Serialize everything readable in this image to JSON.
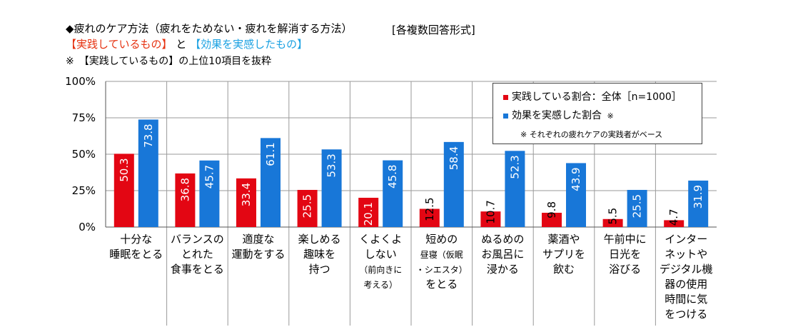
{
  "header": {
    "title": "◆疲れのケア方法（疲れをためない・疲れを解消する方法）",
    "format": "[各複数回答形式]",
    "sub_red": "【実践しているもの】",
    "sub_and": "と",
    "sub_blue": "【効果を実感したもの】",
    "note": "※　【実践しているもの】の上位10項目を抜粋"
  },
  "colors": {
    "practice": "#e30613",
    "effect": "#1877d8"
  },
  "chart_data": {
    "type": "bar",
    "categories": [
      [
        "十分な",
        "睡眠をとる"
      ],
      [
        "バランスの",
        "とれた",
        "食事をとる"
      ],
      [
        "適度な",
        "運動をする"
      ],
      [
        "楽しめる",
        "趣味を",
        "持つ"
      ],
      [
        "くよくよ",
        "しない",
        "（前向きに",
        "考える）"
      ],
      [
        "短めの",
        "昼寝（仮眠",
        "・シエスタ）",
        "をとる"
      ],
      [
        "ぬるめの",
        "お風呂に",
        "浸かる"
      ],
      [
        "薬酒や",
        "サプリを",
        "飲む"
      ],
      [
        "午前中に",
        "日光を",
        "浴びる"
      ],
      [
        "インター",
        "ネットや",
        "デジタル機",
        "器の使用",
        "時間に気",
        "をつける"
      ]
    ],
    "series": [
      {
        "name": "実践している割合：全体［n=1000］",
        "values": [
          50.3,
          36.8,
          33.4,
          25.5,
          20.1,
          12.5,
          10.7,
          9.8,
          5.5,
          4.7
        ]
      },
      {
        "name": "効果を実感した割合",
        "name_suffix": "※",
        "values": [
          73.8,
          45.7,
          61.1,
          53.3,
          45.8,
          58.4,
          52.3,
          43.9,
          25.5,
          31.9
        ]
      }
    ],
    "value_labels": {
      "practice": [
        "50.3",
        "36.8",
        "33.4",
        "25.5",
        "20.1",
        "12.5",
        "10.7",
        "9.8",
        "5.5",
        "4.7"
      ],
      "effect": [
        "73.8",
        "45.7",
        "61.1",
        "53.3",
        "45.8",
        "58.4",
        "52.3",
        "43.9",
        "25.5",
        "31.9"
      ]
    },
    "ylim": [
      0,
      100
    ],
    "yticks": [
      "0%",
      "25%",
      "50%",
      "75%",
      "100%"
    ],
    "ytick_values": [
      0,
      25,
      50,
      75,
      100
    ],
    "legend_note": "※ それぞれの疲れケアの実践者がベース",
    "legend_position": "top-right",
    "grid": true
  }
}
